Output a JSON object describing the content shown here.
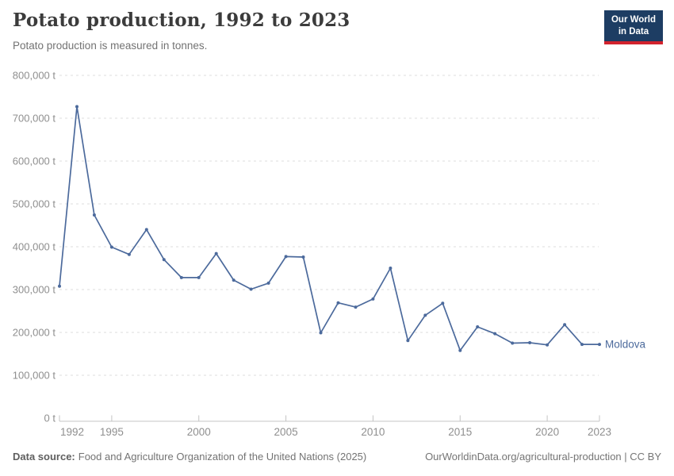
{
  "header": {
    "title": "Potato production, 1992 to 2023",
    "subtitle": "Potato production is measured in tonnes.",
    "logo": {
      "line1": "Our World",
      "line2": "in Data"
    }
  },
  "chart_data": {
    "type": "line",
    "title": "Potato production, 1992 to 2023",
    "unit": "tonnes",
    "x": [
      1992,
      1993,
      1994,
      1995,
      1996,
      1997,
      1998,
      1999,
      2000,
      2001,
      2002,
      2003,
      2004,
      2005,
      2006,
      2007,
      2008,
      2009,
      2010,
      2011,
      2012,
      2013,
      2014,
      2015,
      2016,
      2017,
      2018,
      2019,
      2020,
      2021,
      2022,
      2023
    ],
    "series": [
      {
        "name": "Moldova",
        "color": "#4C6A9C",
        "values": [
          308000,
          727000,
          474000,
          399000,
          382000,
          440000,
          370000,
          328000,
          328000,
          384000,
          322000,
          301000,
          315000,
          377000,
          376000,
          199000,
          269000,
          259000,
          278000,
          350000,
          181000,
          240000,
          268000,
          158000,
          213000,
          197000,
          175000,
          176000,
          171000,
          218000,
          172000,
          172000
        ]
      }
    ],
    "xlim": [
      1992,
      2023
    ],
    "ylim": [
      0,
      800000
    ],
    "ytick_step": 100000,
    "ytick_labels": [
      "0 t",
      "100,000 t",
      "200,000 t",
      "300,000 t",
      "400,000 t",
      "500,000 t",
      "600,000 t",
      "700,000 t",
      "800,000 t"
    ],
    "xticks": [
      1992,
      1995,
      2000,
      2005,
      2010,
      2015,
      2020,
      2023
    ],
    "xtick_labels": [
      "1992",
      "1995",
      "2000",
      "2005",
      "2010",
      "2015",
      "2020",
      "2023"
    ],
    "grid": "horizontal-dashed",
    "legend": "end-of-line-label",
    "end_label": "Moldova"
  },
  "footer": {
    "source_label": "Data source:",
    "source_text": "Food and Agriculture Organization of the United Nations (2025)",
    "credit": "OurWorldinData.org/agricultural-production | CC BY"
  },
  "colors": {
    "series": "#4C6A9C",
    "logo_bg": "#1d3d63",
    "logo_stripe": "#d2232d",
    "grid": "#dedede",
    "axis": "#c4c4c4",
    "tick_text": "#8f8f8f",
    "title_text": "#3b3b3b",
    "muted_text": "#737373"
  }
}
